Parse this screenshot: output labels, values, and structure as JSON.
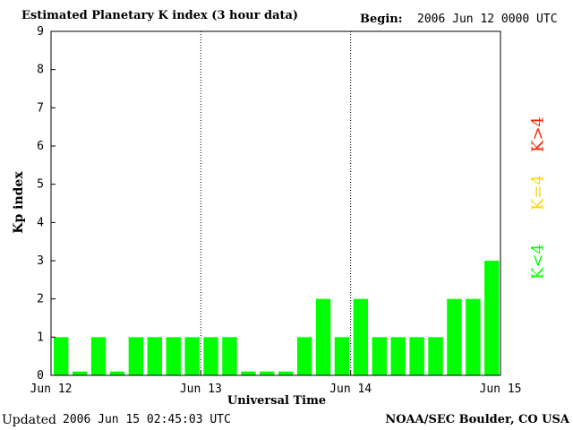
{
  "header": {
    "title": "Estimated Planetary K index (3 hour data)",
    "begin_label": "Begin:",
    "begin_value": "2006 Jun 12 0000 UTC"
  },
  "footer": {
    "updated_label": "Updated",
    "updated_value": "2006 Jun 15 02:45:03 UTC",
    "credit": "NOAA/SEC Boulder, CO USA"
  },
  "legend": {
    "high": "K>4",
    "equal": "K=4",
    "low": "K<4"
  },
  "colors": {
    "low": "#00ff00",
    "equal": "#ffd700",
    "high": "#ff2000",
    "axis": "#000000"
  },
  "chart_data": {
    "type": "bar",
    "title": "Estimated Planetary K index (3 hour data)",
    "xlabel": "Universal Time",
    "ylabel": "Kp index",
    "ylim": [
      0,
      9
    ],
    "yticks": [
      0,
      1,
      2,
      3,
      4,
      5,
      6,
      7,
      8,
      9
    ],
    "xticks": [
      "Jun 12",
      "Jun 13",
      "Jun 14",
      "Jun 15"
    ],
    "day_separators": [
      "Jun 13",
      "Jun 14"
    ],
    "bins_per_day": 8,
    "values": [
      1,
      0.1,
      1,
      0.1,
      1,
      1,
      1,
      1,
      1,
      1,
      0.1,
      0.1,
      0.1,
      1,
      2,
      1,
      2,
      1,
      1,
      1,
      1,
      2,
      2,
      3
    ],
    "series": [
      {
        "name": "Kp",
        "values": [
          1,
          0.1,
          1,
          0.1,
          1,
          1,
          1,
          1,
          1,
          1,
          0.1,
          0.1,
          0.1,
          1,
          2,
          1,
          2,
          1,
          1,
          1,
          1,
          2,
          2,
          3
        ]
      }
    ]
  }
}
